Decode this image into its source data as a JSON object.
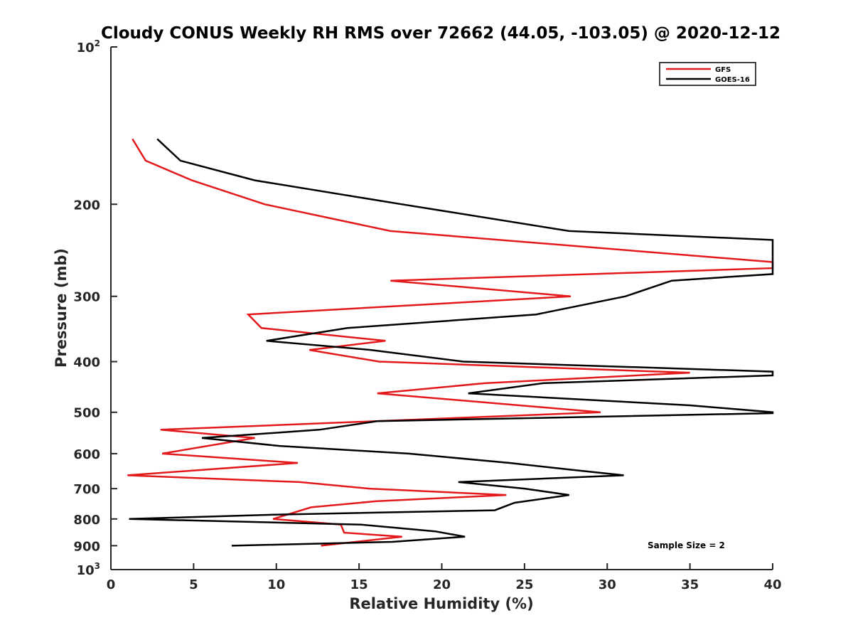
{
  "chart_data": {
    "type": "line",
    "title": "Cloudy CONUS Weekly RH RMS over 72662 (44.05, -103.05) @ 2020-12-12",
    "xlabel": "Relative Humidity (%)",
    "ylabel": "Pressure (mb)",
    "xlim": [
      0,
      40
    ],
    "ylim": [
      100,
      1000
    ],
    "y_scale": "log",
    "y_reversed": true,
    "x_ticks": [
      "0",
      "5",
      "10",
      "15",
      "20",
      "25",
      "30",
      "35",
      "40"
    ],
    "y_ticks": [
      {
        "value": 100,
        "base": "10",
        "exp": "2"
      },
      {
        "value": 200,
        "label": "200"
      },
      {
        "value": 300,
        "label": "300"
      },
      {
        "value": 400,
        "label": "400"
      },
      {
        "value": 500,
        "label": "500"
      },
      {
        "value": 600,
        "label": "600"
      },
      {
        "value": 700,
        "label": "700"
      },
      {
        "value": 800,
        "label": "800"
      },
      {
        "value": 900,
        "label": "900"
      },
      {
        "value": 1000,
        "base": "10",
        "exp": "3"
      }
    ],
    "legend_position": "top-right",
    "annotation": "Sample Size = 2",
    "series": [
      {
        "name": "GFS",
        "color": "#e31a1c",
        "points": [
          [
            1.3,
            150
          ],
          [
            2.1,
            165
          ],
          [
            4.9,
            180
          ],
          [
            9.3,
            200
          ],
          [
            16.9,
            225
          ],
          [
            40,
            258
          ],
          [
            40,
            265
          ],
          [
            16.9,
            280
          ],
          [
            27.8,
            300
          ],
          [
            8.3,
            325
          ],
          [
            9.1,
            345
          ],
          [
            16.6,
            365
          ],
          [
            12.0,
            380
          ],
          [
            16.2,
            400
          ],
          [
            35.0,
            420
          ],
          [
            22.6,
            440
          ],
          [
            16.1,
            460
          ],
          [
            29.6,
            500
          ],
          [
            3.0,
            540
          ],
          [
            8.7,
            560
          ],
          [
            3.1,
            600
          ],
          [
            11.3,
            625
          ],
          [
            1.0,
            660
          ],
          [
            11.4,
            680
          ],
          [
            15.6,
            700
          ],
          [
            23.9,
            720
          ],
          [
            16.0,
            740
          ],
          [
            12.1,
            760
          ],
          [
            9.8,
            800
          ],
          [
            13.9,
            820
          ],
          [
            14.1,
            850
          ],
          [
            17.6,
            865
          ],
          [
            12.7,
            900
          ]
        ]
      },
      {
        "name": "GOES-16",
        "color": "#000000",
        "points": [
          [
            2.8,
            150
          ],
          [
            4.2,
            165
          ],
          [
            8.7,
            180
          ],
          [
            17.6,
            200
          ],
          [
            27.7,
            225
          ],
          [
            40,
            234
          ],
          [
            40,
            272
          ],
          [
            33.9,
            280
          ],
          [
            31.1,
            300
          ],
          [
            25.7,
            325
          ],
          [
            14.3,
            345
          ],
          [
            9.4,
            365
          ],
          [
            15.7,
            380
          ],
          [
            21.3,
            400
          ],
          [
            40,
            418
          ],
          [
            40,
            425
          ],
          [
            26.1,
            440
          ],
          [
            21.6,
            460
          ],
          [
            35.0,
            485
          ],
          [
            40,
            500
          ],
          [
            40,
            502
          ],
          [
            16.1,
            520
          ],
          [
            12.6,
            540
          ],
          [
            5.5,
            560
          ],
          [
            10.2,
            580
          ],
          [
            18.0,
            600
          ],
          [
            24.1,
            625
          ],
          [
            28.0,
            645
          ],
          [
            31.0,
            660
          ],
          [
            21.0,
            680
          ],
          [
            25.0,
            700
          ],
          [
            27.7,
            720
          ],
          [
            24.4,
            745
          ],
          [
            23.2,
            770
          ],
          [
            9.9,
            785
          ],
          [
            1.1,
            800
          ],
          [
            15.1,
            820
          ],
          [
            19.6,
            845
          ],
          [
            21.4,
            865
          ],
          [
            17.0,
            885
          ],
          [
            7.3,
            900
          ]
        ]
      }
    ]
  }
}
